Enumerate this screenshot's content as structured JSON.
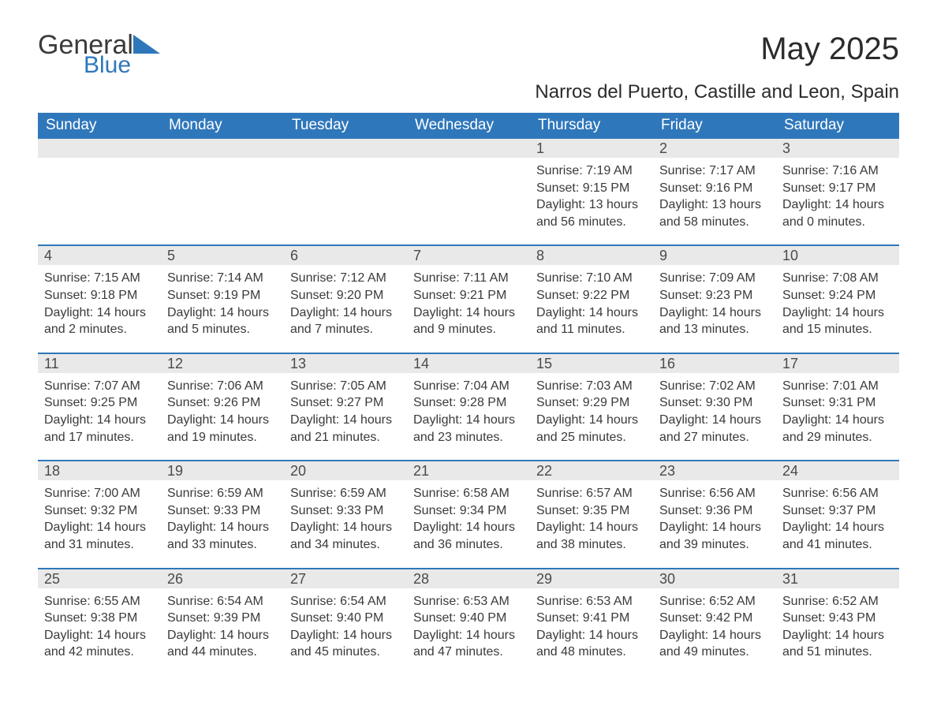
{
  "brand": {
    "word1": "General",
    "word2": "Blue",
    "word1_color": "#3a3a3a",
    "word2_color": "#2f77bb",
    "triangle_color": "#2f77bb"
  },
  "title": {
    "month_year": "May 2025",
    "location": "Narros del Puerto, Castille and Leon, Spain"
  },
  "colors": {
    "header_bg": "#2f77bb",
    "header_text": "#ffffff",
    "daynum_bg": "#e9e9e9",
    "row_divider": "#2f77bb",
    "body_text": "#3a3a3a",
    "page_bg": "#ffffff"
  },
  "typography": {
    "month_year_fontsize_pt": 30,
    "location_fontsize_pt": 18,
    "weekday_fontsize_pt": 14,
    "daynum_fontsize_pt": 13,
    "body_fontsize_pt": 12,
    "font_family": "Arial"
  },
  "calendar": {
    "weekdays": [
      "Sunday",
      "Monday",
      "Tuesday",
      "Wednesday",
      "Thursday",
      "Friday",
      "Saturday"
    ],
    "weeks": [
      [
        {
          "day": "",
          "lines": []
        },
        {
          "day": "",
          "lines": []
        },
        {
          "day": "",
          "lines": []
        },
        {
          "day": "",
          "lines": []
        },
        {
          "day": "1",
          "lines": [
            "Sunrise: 7:19 AM",
            "Sunset: 9:15 PM",
            "Daylight: 13 hours",
            "and 56 minutes."
          ]
        },
        {
          "day": "2",
          "lines": [
            "Sunrise: 7:17 AM",
            "Sunset: 9:16 PM",
            "Daylight: 13 hours",
            "and 58 minutes."
          ]
        },
        {
          "day": "3",
          "lines": [
            "Sunrise: 7:16 AM",
            "Sunset: 9:17 PM",
            "Daylight: 14 hours",
            "and 0 minutes."
          ]
        }
      ],
      [
        {
          "day": "4",
          "lines": [
            "Sunrise: 7:15 AM",
            "Sunset: 9:18 PM",
            "Daylight: 14 hours",
            "and 2 minutes."
          ]
        },
        {
          "day": "5",
          "lines": [
            "Sunrise: 7:14 AM",
            "Sunset: 9:19 PM",
            "Daylight: 14 hours",
            "and 5 minutes."
          ]
        },
        {
          "day": "6",
          "lines": [
            "Sunrise: 7:12 AM",
            "Sunset: 9:20 PM",
            "Daylight: 14 hours",
            "and 7 minutes."
          ]
        },
        {
          "day": "7",
          "lines": [
            "Sunrise: 7:11 AM",
            "Sunset: 9:21 PM",
            "Daylight: 14 hours",
            "and 9 minutes."
          ]
        },
        {
          "day": "8",
          "lines": [
            "Sunrise: 7:10 AM",
            "Sunset: 9:22 PM",
            "Daylight: 14 hours",
            "and 11 minutes."
          ]
        },
        {
          "day": "9",
          "lines": [
            "Sunrise: 7:09 AM",
            "Sunset: 9:23 PM",
            "Daylight: 14 hours",
            "and 13 minutes."
          ]
        },
        {
          "day": "10",
          "lines": [
            "Sunrise: 7:08 AM",
            "Sunset: 9:24 PM",
            "Daylight: 14 hours",
            "and 15 minutes."
          ]
        }
      ],
      [
        {
          "day": "11",
          "lines": [
            "Sunrise: 7:07 AM",
            "Sunset: 9:25 PM",
            "Daylight: 14 hours",
            "and 17 minutes."
          ]
        },
        {
          "day": "12",
          "lines": [
            "Sunrise: 7:06 AM",
            "Sunset: 9:26 PM",
            "Daylight: 14 hours",
            "and 19 minutes."
          ]
        },
        {
          "day": "13",
          "lines": [
            "Sunrise: 7:05 AM",
            "Sunset: 9:27 PM",
            "Daylight: 14 hours",
            "and 21 minutes."
          ]
        },
        {
          "day": "14",
          "lines": [
            "Sunrise: 7:04 AM",
            "Sunset: 9:28 PM",
            "Daylight: 14 hours",
            "and 23 minutes."
          ]
        },
        {
          "day": "15",
          "lines": [
            "Sunrise: 7:03 AM",
            "Sunset: 9:29 PM",
            "Daylight: 14 hours",
            "and 25 minutes."
          ]
        },
        {
          "day": "16",
          "lines": [
            "Sunrise: 7:02 AM",
            "Sunset: 9:30 PM",
            "Daylight: 14 hours",
            "and 27 minutes."
          ]
        },
        {
          "day": "17",
          "lines": [
            "Sunrise: 7:01 AM",
            "Sunset: 9:31 PM",
            "Daylight: 14 hours",
            "and 29 minutes."
          ]
        }
      ],
      [
        {
          "day": "18",
          "lines": [
            "Sunrise: 7:00 AM",
            "Sunset: 9:32 PM",
            "Daylight: 14 hours",
            "and 31 minutes."
          ]
        },
        {
          "day": "19",
          "lines": [
            "Sunrise: 6:59 AM",
            "Sunset: 9:33 PM",
            "Daylight: 14 hours",
            "and 33 minutes."
          ]
        },
        {
          "day": "20",
          "lines": [
            "Sunrise: 6:59 AM",
            "Sunset: 9:33 PM",
            "Daylight: 14 hours",
            "and 34 minutes."
          ]
        },
        {
          "day": "21",
          "lines": [
            "Sunrise: 6:58 AM",
            "Sunset: 9:34 PM",
            "Daylight: 14 hours",
            "and 36 minutes."
          ]
        },
        {
          "day": "22",
          "lines": [
            "Sunrise: 6:57 AM",
            "Sunset: 9:35 PM",
            "Daylight: 14 hours",
            "and 38 minutes."
          ]
        },
        {
          "day": "23",
          "lines": [
            "Sunrise: 6:56 AM",
            "Sunset: 9:36 PM",
            "Daylight: 14 hours",
            "and 39 minutes."
          ]
        },
        {
          "day": "24",
          "lines": [
            "Sunrise: 6:56 AM",
            "Sunset: 9:37 PM",
            "Daylight: 14 hours",
            "and 41 minutes."
          ]
        }
      ],
      [
        {
          "day": "25",
          "lines": [
            "Sunrise: 6:55 AM",
            "Sunset: 9:38 PM",
            "Daylight: 14 hours",
            "and 42 minutes."
          ]
        },
        {
          "day": "26",
          "lines": [
            "Sunrise: 6:54 AM",
            "Sunset: 9:39 PM",
            "Daylight: 14 hours",
            "and 44 minutes."
          ]
        },
        {
          "day": "27",
          "lines": [
            "Sunrise: 6:54 AM",
            "Sunset: 9:40 PM",
            "Daylight: 14 hours",
            "and 45 minutes."
          ]
        },
        {
          "day": "28",
          "lines": [
            "Sunrise: 6:53 AM",
            "Sunset: 9:40 PM",
            "Daylight: 14 hours",
            "and 47 minutes."
          ]
        },
        {
          "day": "29",
          "lines": [
            "Sunrise: 6:53 AM",
            "Sunset: 9:41 PM",
            "Daylight: 14 hours",
            "and 48 minutes."
          ]
        },
        {
          "day": "30",
          "lines": [
            "Sunrise: 6:52 AM",
            "Sunset: 9:42 PM",
            "Daylight: 14 hours",
            "and 49 minutes."
          ]
        },
        {
          "day": "31",
          "lines": [
            "Sunrise: 6:52 AM",
            "Sunset: 9:43 PM",
            "Daylight: 14 hours",
            "and 51 minutes."
          ]
        }
      ]
    ]
  }
}
